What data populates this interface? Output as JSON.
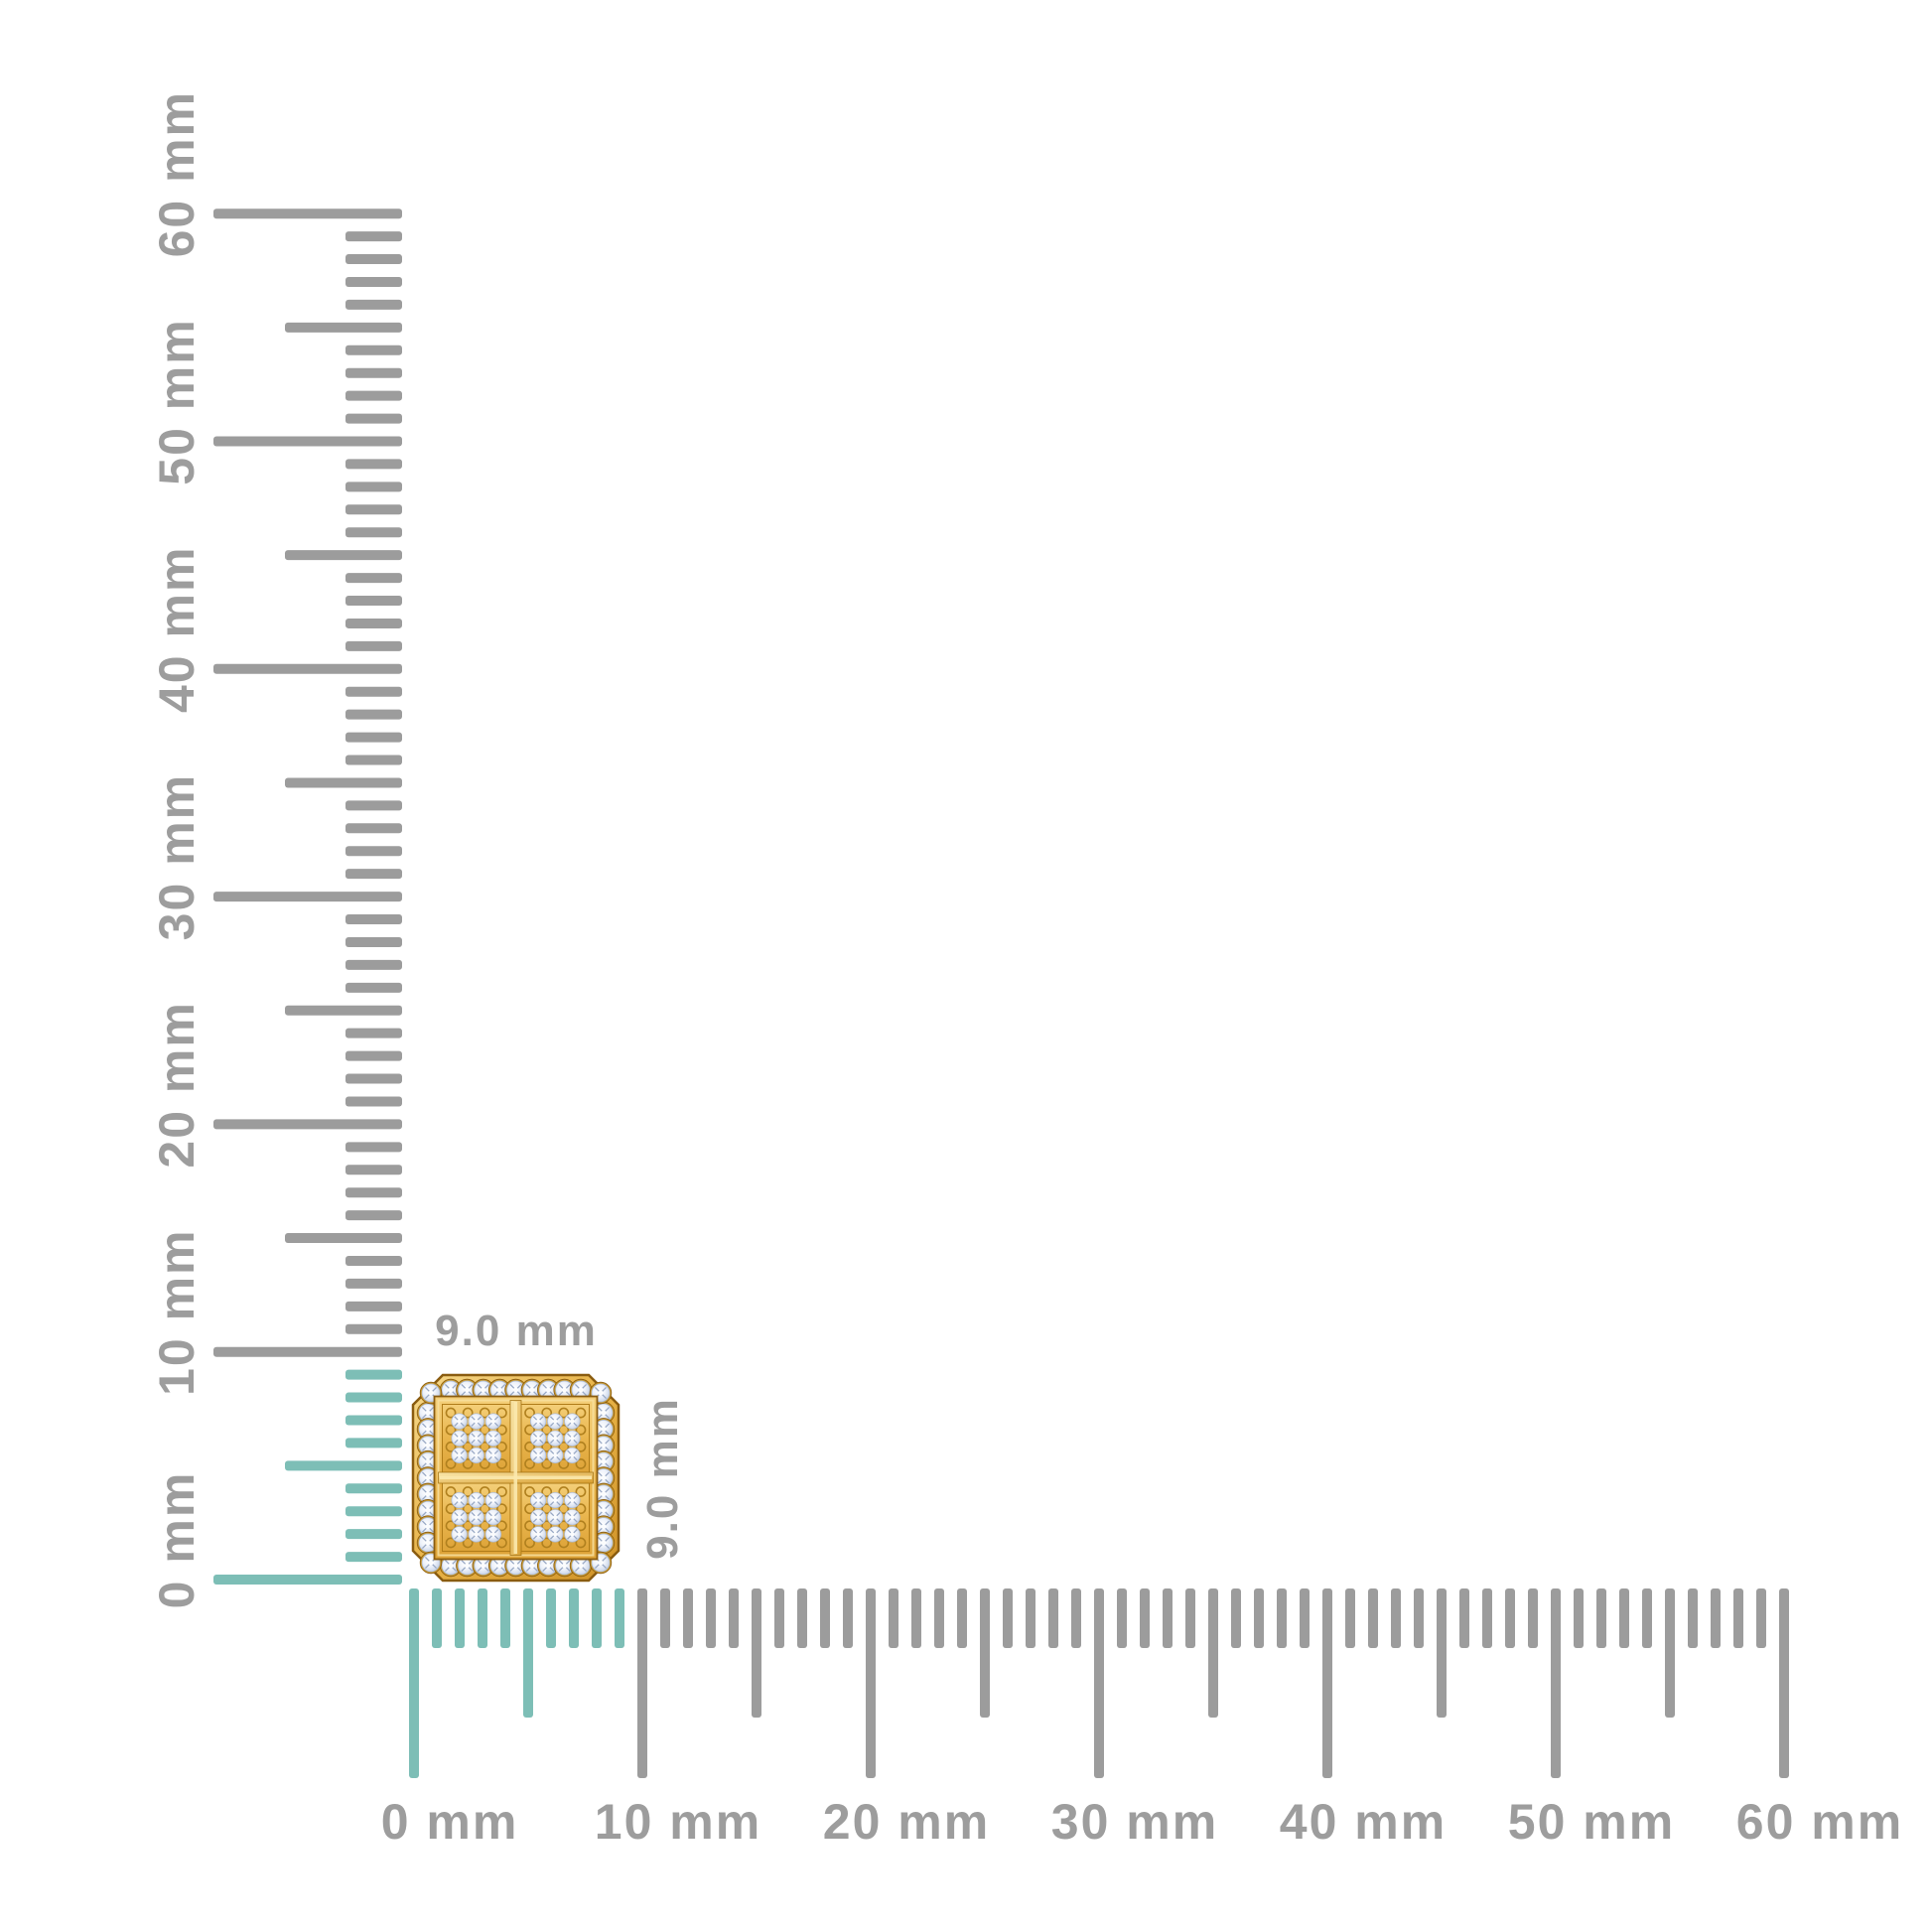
{
  "meta": {
    "description": "Product dimension diagram: gold square cluster stud earring with pave diamonds shown against 0-60 mm horizontal and vertical rulers, item spans 0-9 mm on both axes"
  },
  "colors": {
    "background": "#ffffff",
    "tick_gray": "#9c9c9c",
    "tick_highlight": "#7dbeb6",
    "label_text": "#9d9d9d",
    "gold_light": "#f6d98c",
    "gold_mid": "#e8b347",
    "gold_deep": "#cf9227",
    "gold_seat": "#c8992f",
    "gold_outline": "#8a5c10",
    "ring_stroke": "#b0801e",
    "diamond_center": "#ffffff",
    "diamond_mid": "#eef2fa",
    "diamond_edge": "#b6c3da",
    "sparkle": "#98a8c4"
  },
  "rulers": {
    "unit": "mm",
    "min_mm": 0,
    "max_mm": 60,
    "minor_step_mm": 1,
    "medium_step_mm": 5,
    "major_step_mm": 10,
    "highlight_to_mm": 9,
    "horizontal_labels": [
      "0 mm",
      "10 mm",
      "20 mm",
      "30 mm",
      "40 mm",
      "50 mm",
      "60 mm"
    ],
    "vertical_labels": [
      "0 mm",
      "10 mm",
      "20 mm",
      "30 mm",
      "40 mm",
      "50 mm",
      "60 mm"
    ]
  },
  "item": {
    "type": "gold-diamond-square-cluster-stud",
    "width_label": "9.0 mm",
    "height_label": "9.0 mm",
    "size_mm": 9.0,
    "border_stones": 40,
    "pave_layout": "4 quadrants of 3x3 diamonds"
  }
}
